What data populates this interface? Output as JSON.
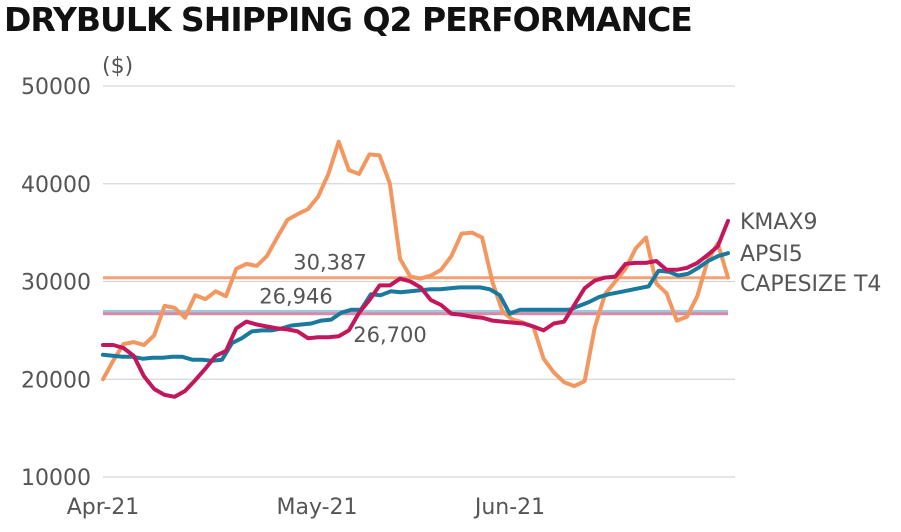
{
  "title": "DRYBULK SHIPPING Q2 PERFORMANCE",
  "chart_data": {
    "type": "line",
    "title": "DRYBULK SHIPPING Q2 PERFORMANCE",
    "unit_label": "($)",
    "ylim": [
      10000,
      50000
    ],
    "y_ticks": [
      "50000",
      "40000",
      "30000",
      "20000",
      "10000"
    ],
    "x_ticks": [
      "Apr-21",
      "May-21",
      "Jun-21"
    ],
    "grid": "horizontal",
    "series": [
      {
        "name": "KMAX9",
        "color": "#c2185b",
        "values": [
          23500,
          23500,
          23200,
          22400,
          20300,
          19000,
          18400,
          18200,
          18800,
          19900,
          21100,
          22400,
          22900,
          25200,
          25900,
          25600,
          25400,
          25200,
          25100,
          24900,
          24200,
          24300,
          24300,
          24400,
          25000,
          26800,
          28100,
          29600,
          29600,
          30300,
          30000,
          29400,
          28100,
          27600,
          26700,
          26600,
          26400,
          26300,
          26000,
          25900,
          25800,
          25700,
          25400,
          25000,
          25700,
          25900,
          27600,
          29300,
          30100,
          30400,
          30500,
          31800,
          31900,
          31900,
          32100,
          31200,
          31200,
          31400,
          31900,
          32700,
          33600,
          36200
        ]
      },
      {
        "name": "APSI5",
        "color": "#1a7a9e",
        "values": [
          22500,
          22400,
          22300,
          22300,
          22100,
          22200,
          22200,
          22300,
          22300,
          22000,
          22000,
          21900,
          22000,
          23700,
          24200,
          24900,
          25000,
          25000,
          25200,
          25500,
          25600,
          25700,
          26000,
          26100,
          26800,
          27100,
          27100,
          28700,
          28600,
          29000,
          28900,
          29000,
          29100,
          29200,
          29200,
          29300,
          29400,
          29400,
          29400,
          29200,
          28600,
          26700,
          27100,
          27100,
          27100,
          27100,
          27100,
          27100,
          27500,
          27900,
          28400,
          28700,
          28900,
          29100,
          29300,
          29500,
          31100,
          31000,
          30600,
          30800,
          31400,
          32100,
          32600,
          32900
        ]
      },
      {
        "name": "CAPESIZE T4",
        "color": "#f2975f",
        "values": [
          20000,
          21900,
          23600,
          23800,
          23500,
          24500,
          27500,
          27300,
          26300,
          28600,
          28200,
          29000,
          28500,
          31300,
          31800,
          31600,
          32600,
          34500,
          36300,
          36900,
          37400,
          38700,
          41000,
          44300,
          41400,
          41000,
          43000,
          42900,
          40000,
          32300,
          30500,
          30300,
          30600,
          31200,
          32600,
          34900,
          35000,
          34500,
          30000,
          26900,
          26100,
          25800,
          25400,
          22100,
          20700,
          19700,
          19300,
          19800,
          25300,
          28700,
          30000,
          31300,
          33400,
          34500,
          29800,
          28800,
          26000,
          26400,
          28500,
          32100,
          33900,
          30400
        ]
      },
      {
        "name": "",
        "color": "#f2a278",
        "dashed": false,
        "values": [
          30387
        ]
      }
    ],
    "reference_lines": [
      {
        "label": "30,387",
        "value": 30387,
        "color": "#f2a278"
      },
      {
        "label": "26,946",
        "value": 26946,
        "color": "#9ec9dc"
      },
      {
        "label": "26,700",
        "value": 26700,
        "color": "#d98aa8"
      }
    ]
  }
}
